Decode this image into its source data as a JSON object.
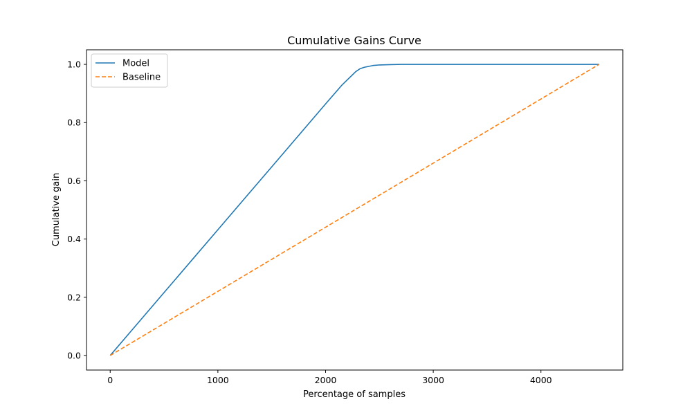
{
  "chart_data": {
    "type": "line",
    "title": "Cumulative Gains Curve",
    "xlabel": "Percentage of samples",
    "ylabel": "Cumulative gain",
    "xlim": [
      -220,
      4760
    ],
    "ylim": [
      -0.05,
      1.05
    ],
    "xticks": [
      0,
      1000,
      2000,
      3000,
      4000
    ],
    "xtick_labels": [
      "0",
      "1000",
      "2000",
      "3000",
      "4000"
    ],
    "yticks": [
      0.0,
      0.2,
      0.4,
      0.6,
      0.8,
      1.0
    ],
    "ytick_labels": [
      "0.0",
      "0.2",
      "0.4",
      "0.6",
      "0.8",
      "1.0"
    ],
    "grid": false,
    "legend_position": "upper-left",
    "series": [
      {
        "name": "Model",
        "color": "#1f77b4",
        "style": "solid",
        "x": [
          0,
          250,
          500,
          750,
          1000,
          1250,
          1500,
          1750,
          2000,
          2150,
          2280,
          2320,
          2360,
          2400,
          2440,
          2500,
          2600,
          2700,
          3000,
          3500,
          4000,
          4540
        ],
        "y": [
          0.0,
          0.108,
          0.216,
          0.324,
          0.432,
          0.54,
          0.648,
          0.756,
          0.864,
          0.928,
          0.975,
          0.985,
          0.99,
          0.993,
          0.996,
          0.998,
          0.999,
          1.0,
          1.0,
          1.0,
          1.0,
          1.0
        ]
      },
      {
        "name": "Baseline",
        "color": "#ff7f0e",
        "style": "dashed",
        "x": [
          0,
          4540
        ],
        "y": [
          0.0,
          1.0
        ]
      }
    ]
  }
}
